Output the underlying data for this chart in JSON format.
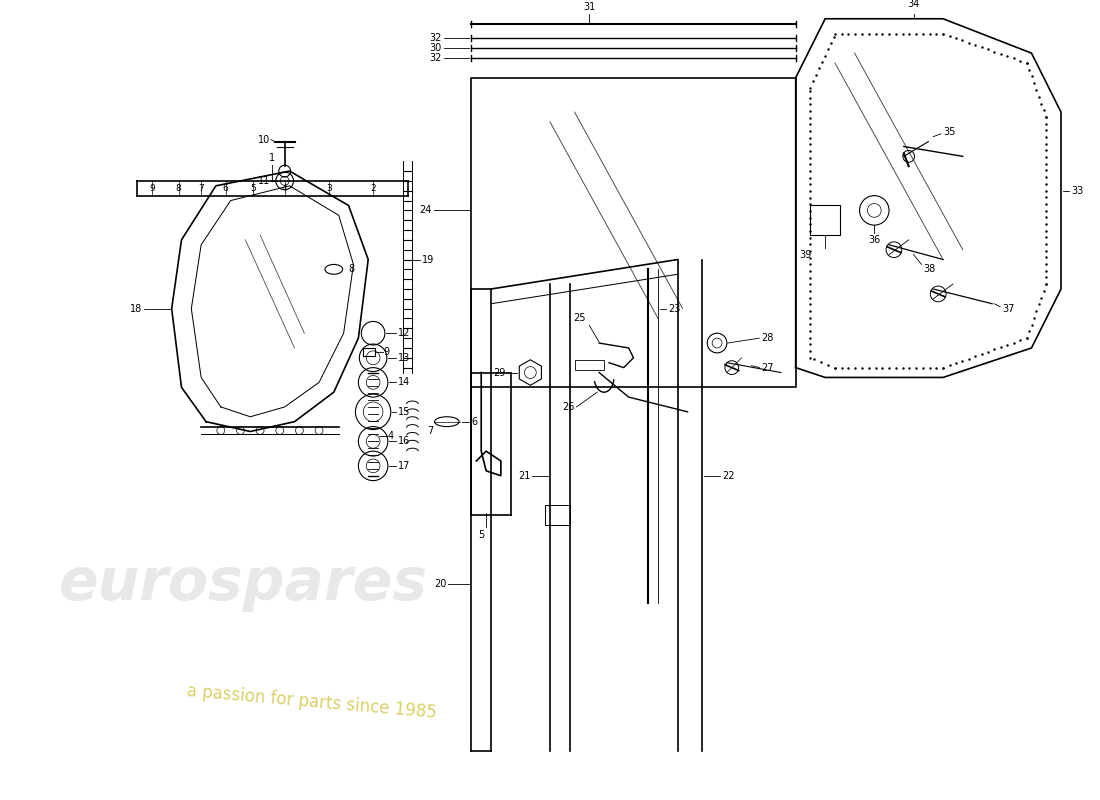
{
  "bg": "#ffffff",
  "lc": "#000000",
  "wm1": "eurospares",
  "wm2": "a passion for parts since 1985",
  "wm1_color": "#cccccc",
  "wm2_color": "#d4c84a"
}
